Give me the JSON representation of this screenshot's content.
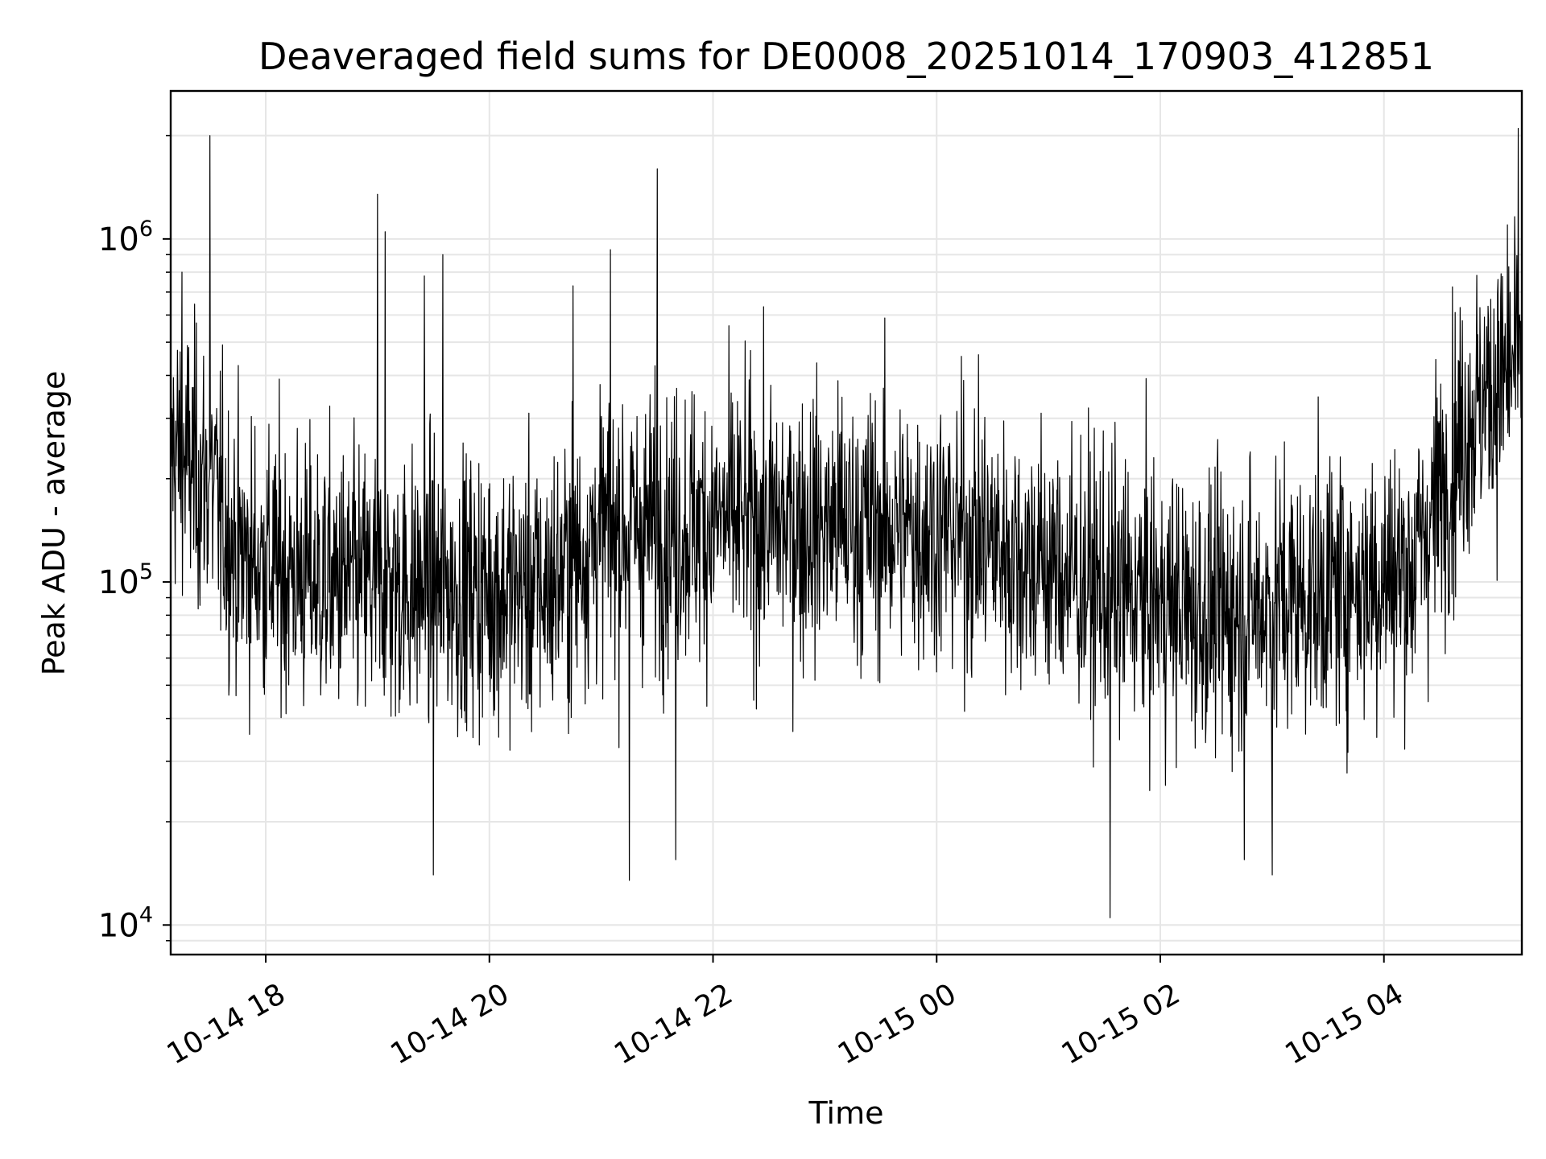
{
  "chart_data": {
    "type": "line",
    "title": "Deaveraged field sums for DE0008_20251014_170903_412851",
    "xlabel": "Time",
    "ylabel": "Peak ADU - average",
    "x_range": [
      "2025-10-14 17:09",
      "2025-10-15 05:14"
    ],
    "ylim": [
      8200,
      2700000
    ],
    "yscale": "log",
    "grid": true,
    "line_color": "#000000",
    "grid_color": "#e6e6e6",
    "x_ticks": [
      {
        "time": "2025-10-14 18:00",
        "label": "10-14 18"
      },
      {
        "time": "2025-10-14 20:00",
        "label": "10-14 20"
      },
      {
        "time": "2025-10-14 22:00",
        "label": "10-14 22"
      },
      {
        "time": "2025-10-15 00:00",
        "label": "10-15 00"
      },
      {
        "time": "2025-10-15 02:00",
        "label": "10-15 02"
      },
      {
        "time": "2025-10-15 04:00",
        "label": "10-15 04"
      }
    ],
    "y_ticks": [
      {
        "value": 10000,
        "base": "10",
        "exp": "4"
      },
      {
        "value": 100000,
        "base": "10",
        "exp": "5"
      },
      {
        "value": 1000000,
        "base": "10",
        "exp": "6"
      }
    ],
    "trend": [
      {
        "time": "2025-10-14 17:09",
        "value": 250000
      },
      {
        "time": "2025-10-14 17:30",
        "value": 190000
      },
      {
        "time": "2025-10-14 17:45",
        "value": 120000
      },
      {
        "time": "2025-10-14 18:30",
        "value": 100000
      },
      {
        "time": "2025-10-14 19:30",
        "value": 95000
      },
      {
        "time": "2025-10-14 20:30",
        "value": 95000
      },
      {
        "time": "2025-10-14 21:00",
        "value": 140000
      },
      {
        "time": "2025-10-14 22:00",
        "value": 150000
      },
      {
        "time": "2025-10-14 23:30",
        "value": 145000
      },
      {
        "time": "2025-10-15 00:15",
        "value": 140000
      },
      {
        "time": "2025-10-15 01:30",
        "value": 95000
      },
      {
        "time": "2025-10-15 02:30",
        "value": 80000
      },
      {
        "time": "2025-10-15 03:30",
        "value": 95000
      },
      {
        "time": "2025-10-15 04:15",
        "value": 110000
      },
      {
        "time": "2025-10-15 04:45",
        "value": 300000
      },
      {
        "time": "2025-10-15 05:14",
        "value": 450000
      }
    ],
    "spikes": [
      {
        "time": "2025-10-14 17:15",
        "value": 800000
      },
      {
        "time": "2025-10-14 17:30",
        "value": 2000000
      },
      {
        "time": "2025-10-14 19:00",
        "value": 1350000
      },
      {
        "time": "2025-10-14 19:04",
        "value": 1050000
      },
      {
        "time": "2025-10-14 19:25",
        "value": 780000
      },
      {
        "time": "2025-10-14 19:30",
        "value": 14000
      },
      {
        "time": "2025-10-14 19:35",
        "value": 900000
      },
      {
        "time": "2025-10-14 20:45",
        "value": 730000
      },
      {
        "time": "2025-10-14 21:05",
        "value": 930000
      },
      {
        "time": "2025-10-14 21:15",
        "value": 13500
      },
      {
        "time": "2025-10-14 21:30",
        "value": 1600000
      },
      {
        "time": "2025-10-14 21:40",
        "value": 15500
      },
      {
        "time": "2025-10-15 01:33",
        "value": 10500
      },
      {
        "time": "2025-10-15 02:45",
        "value": 15500
      },
      {
        "time": "2025-10-15 03:00",
        "value": 14000
      },
      {
        "time": "2025-10-15 05:12",
        "value": 2100000
      }
    ]
  }
}
